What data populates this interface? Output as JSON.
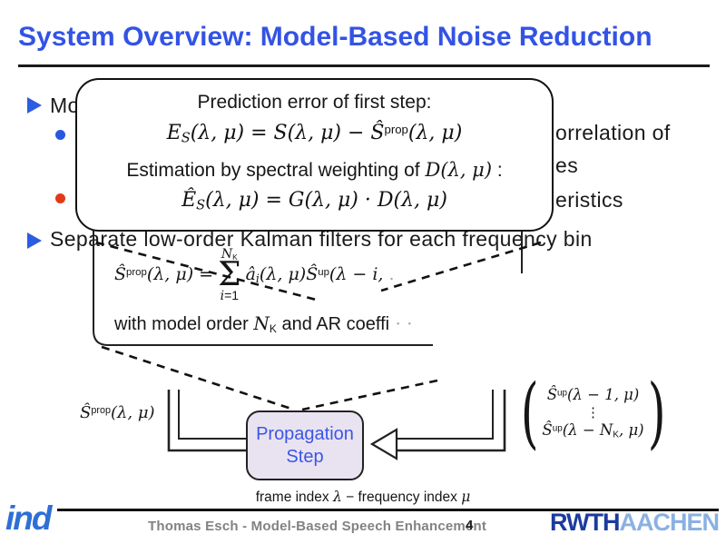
{
  "title": "System Overview: Model-Based Noise Reduction",
  "bullets": {
    "b1_fragment": "Mo",
    "sub1_line1_fragment": "orrelation of",
    "sub1_line2_fragment": "es",
    "sub2_fragment": "eristics",
    "b2": "Separate low-order Kalman filters for each frequency bin"
  },
  "callout": {
    "line1": "Prediction error of first step:",
    "formula_prediction_error": [
      {
        "t": "E",
        "k": "v"
      },
      {
        "t": "S",
        "k": "s"
      },
      {
        "t": "(λ, μ) = S(λ, μ) − ",
        "k": "v"
      },
      {
        "t": "Ŝ",
        "k": "v"
      },
      {
        "t": "prop",
        "k": "p"
      },
      {
        "t": "(λ, μ)",
        "k": "v"
      }
    ],
    "line2": [
      {
        "t": "Estimation by spectral weighting of  ",
        "k": "t"
      },
      {
        "t": "D(λ, μ)",
        "k": "v"
      },
      {
        "t": " :",
        "k": "t"
      }
    ],
    "formula_spectral_weighting": [
      {
        "t": "Ê",
        "k": "v"
      },
      {
        "t": "S",
        "k": "s"
      },
      {
        "t": "(λ, μ) = G(λ, μ) · D(λ, μ)",
        "k": "v"
      }
    ]
  },
  "kalman": {
    "lhs": [
      {
        "t": "Ŝ",
        "k": "v"
      },
      {
        "t": "prop",
        "k": "p"
      },
      {
        "t": "(λ, μ) = ",
        "k": "v"
      }
    ],
    "sum_top": [
      {
        "t": "N",
        "k": "v"
      },
      {
        "t": "K",
        "k": "sn"
      }
    ],
    "sigma": "Σ",
    "sum_bot": [
      {
        "t": "i",
        "k": "v"
      },
      {
        "t": "=1",
        "k": "t"
      }
    ],
    "rhs": [
      {
        "t": "â",
        "k": "v"
      },
      {
        "t": "i",
        "k": "s"
      },
      {
        "t": "(λ, μ)",
        "k": "v"
      },
      {
        "t": "Ŝ",
        "k": "v"
      },
      {
        "t": "up",
        "k": "p"
      },
      {
        "t": "(λ − i,",
        "k": "v"
      },
      {
        "t": "  .",
        "k": "f"
      }
    ],
    "note": [
      {
        "t": "with model order ",
        "k": "t"
      },
      {
        "t": "N",
        "k": "v"
      },
      {
        "t": "K",
        "k": "sn"
      },
      {
        "t": " and AR coeffi",
        "k": "t"
      },
      {
        "t": " ·   ·",
        "k": "f"
      }
    ]
  },
  "diagram": {
    "left_label": [
      {
        "t": "Ŝ",
        "k": "v"
      },
      {
        "t": "prop",
        "k": "p"
      },
      {
        "t": "(λ, μ)",
        "k": "v"
      }
    ],
    "box_line1": "Propagation",
    "box_line2": "Step",
    "paren_open": "(",
    "paren_close": ")",
    "matrix_row1": [
      {
        "t": "Ŝ",
        "k": "v"
      },
      {
        "t": "up",
        "k": "p"
      },
      {
        "t": "(λ − 1, μ)",
        "k": "v"
      }
    ],
    "matrix_vdots": "⋮",
    "matrix_row2": [
      {
        "t": "Ŝ",
        "k": "v"
      },
      {
        "t": "up",
        "k": "p"
      },
      {
        "t": "(λ − N",
        "k": "v"
      },
      {
        "t": "K",
        "k": "sn"
      },
      {
        "t": ", μ)",
        "k": "v"
      }
    ],
    "caption": [
      {
        "t": "frame index ",
        "k": "t"
      },
      {
        "t": "λ",
        "k": "v"
      },
      {
        "t": " − frequency index ",
        "k": "t"
      },
      {
        "t": "μ",
        "k": "v"
      }
    ]
  },
  "footer": {
    "ind_logo": "ind",
    "credit": "Thomas Esch  -  Model-Based Speech Enhancement",
    "page": "4",
    "rwth": "RWTH",
    "aachen": "AACHEN"
  },
  "colors": {
    "title_blue": "#3353e4",
    "bullet_blue": "#2b5ce2",
    "sub_bullet_blue": "#2858e0",
    "sub_bullet_red": "#e23916",
    "prop_box_fill": "#e9e3f1",
    "prop_box_text": "#3c55e6",
    "rwth_dark_blue": "#1c3b9e",
    "rwth_light_blue": "#8ab1e2",
    "ind_blue": "#2e6fd4"
  }
}
